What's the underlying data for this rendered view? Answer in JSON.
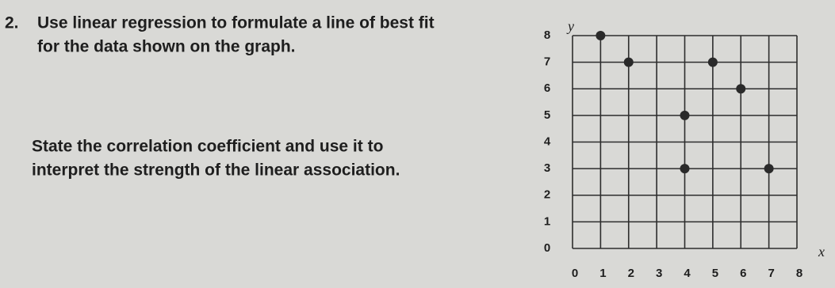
{
  "question": {
    "number": "2.",
    "lines": [
      "Use linear regression to formulate a line of best fit",
      "for the data shown on the graph.",
      "State the correlation coefficient and use it to",
      "interpret the strength of the linear association."
    ]
  },
  "chart_data": {
    "type": "scatter",
    "xlabel": "x",
    "ylabel": "y",
    "x": [
      1,
      2,
      5,
      6,
      4,
      4,
      7
    ],
    "values": [
      8,
      7,
      7,
      6,
      5,
      3,
      3
    ],
    "color": "#2a2a2a",
    "xlim": [
      0,
      8
    ],
    "ylim": [
      0,
      8
    ],
    "xticks": [
      0,
      1,
      2,
      3,
      4,
      5,
      6,
      7,
      8
    ],
    "yticks": [
      0,
      1,
      2,
      3,
      4,
      5,
      6,
      7,
      8
    ],
    "grid": true
  }
}
